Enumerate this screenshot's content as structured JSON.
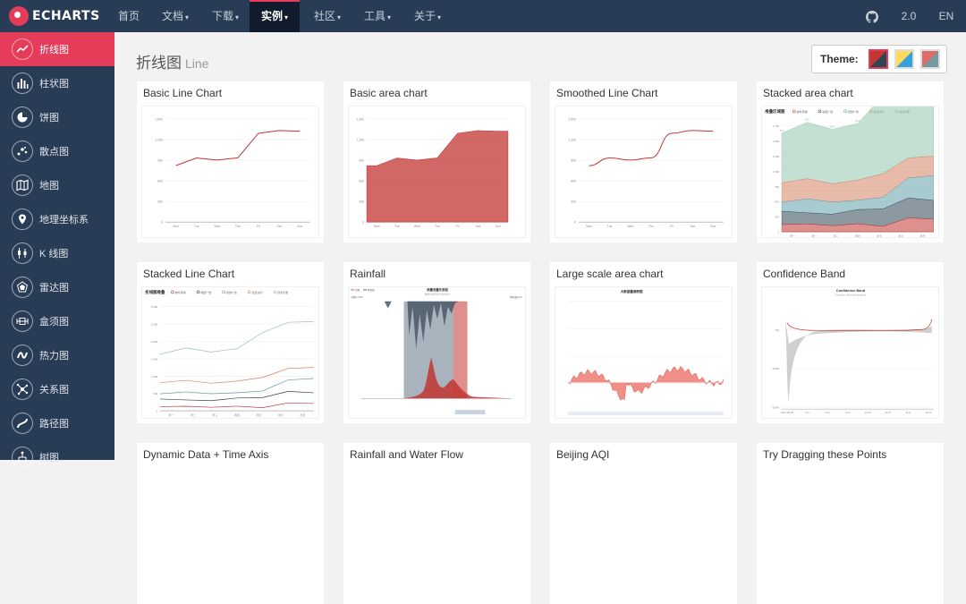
{
  "app": {
    "logo_text": "ECHARTS"
  },
  "nav": {
    "items": [
      {
        "label": "首页"
      },
      {
        "label": "文档"
      },
      {
        "label": "下载"
      },
      {
        "label": "实例"
      },
      {
        "label": "社区"
      },
      {
        "label": "工具"
      },
      {
        "label": "关于"
      }
    ],
    "version": "2.0",
    "lang": "EN",
    "github_icon": "github-icon"
  },
  "sidebar": {
    "items": [
      {
        "label": "折线图",
        "icon": "line-chart-icon"
      },
      {
        "label": "柱状图",
        "icon": "bar-chart-icon"
      },
      {
        "label": "饼图",
        "icon": "pie-chart-icon"
      },
      {
        "label": "散点图",
        "icon": "scatter-chart-icon"
      },
      {
        "label": "地图",
        "icon": "map-icon"
      },
      {
        "label": "地理坐标系",
        "icon": "geo-icon"
      },
      {
        "label": "K 线图",
        "icon": "candlestick-icon"
      },
      {
        "label": "雷达图",
        "icon": "radar-icon"
      },
      {
        "label": "盒须图",
        "icon": "boxplot-icon"
      },
      {
        "label": "热力图",
        "icon": "heatmap-icon"
      },
      {
        "label": "关系图",
        "icon": "graph-icon"
      },
      {
        "label": "路径图",
        "icon": "lines-icon"
      },
      {
        "label": "树图",
        "icon": "tree-icon"
      }
    ]
  },
  "page": {
    "title": "折线图",
    "subtitle": "Line"
  },
  "theme": {
    "label": "Theme:",
    "options": [
      {
        "name": "default",
        "colors": [
          "#c23531",
          "#2f4554"
        ]
      },
      {
        "name": "light",
        "colors": [
          "#37a2da",
          "#ffd85c"
        ]
      },
      {
        "name": "dark",
        "colors": [
          "#dd6b66",
          "#759aa0"
        ]
      }
    ]
  },
  "cards": [
    {
      "title": "Basic Line Chart"
    },
    {
      "title": "Basic area chart"
    },
    {
      "title": "Smoothed Line Chart"
    },
    {
      "title": "Stacked area chart"
    },
    {
      "title": "Stacked Line Chart"
    },
    {
      "title": "Rainfall"
    },
    {
      "title": "Large scale area chart"
    },
    {
      "title": "Confidence Band"
    },
    {
      "title": "Dynamic Data + Time Axis"
    },
    {
      "title": "Rainfall and Water Flow"
    },
    {
      "title": "Beijing AQI"
    },
    {
      "title": "Try Dragging these Points"
    }
  ],
  "thumbs": {
    "basic_line": {
      "values": [
        820,
        932,
        901,
        934,
        1290,
        1330,
        1320
      ],
      "y_ticks": [
        "1,500",
        "1,200",
        "900",
        "600",
        "300",
        "0"
      ],
      "x_ticks": [
        "Mon",
        "Tue",
        "Wed",
        "Thu",
        "Fri",
        "Sat",
        "Sun"
      ]
    },
    "basic_area": {
      "values": [
        820,
        932,
        901,
        934,
        1290,
        1330,
        1320
      ],
      "y_ticks": [
        "1,500",
        "1,200",
        "900",
        "600",
        "300",
        "0"
      ],
      "x_ticks": [
        "Mon",
        "Tue",
        "Wed",
        "Thu",
        "Fri",
        "Sat",
        "Sun"
      ]
    },
    "smoothed": {
      "values": [
        820,
        932,
        901,
        934,
        1290,
        1330,
        1320
      ],
      "y_ticks": [
        "1,500",
        "1,200",
        "900",
        "600",
        "300",
        "0"
      ],
      "x_ticks": [
        "Mon",
        "Tue",
        "Wed",
        "Thu",
        "Fri",
        "Sat",
        "Sun"
      ]
    },
    "stacked_area": {
      "title": "堆叠区域图",
      "legend": [
        "邮件营销",
        "联盟广告",
        "视频广告",
        "直接访问",
        "搜索引擎"
      ],
      "x_ticks": [
        "周一",
        "周二",
        "周三",
        "周四",
        "周五",
        "周六",
        "周日"
      ],
      "y_ticks": [
        "1,750",
        "1,500",
        "1,250",
        "1,000",
        "750",
        "500",
        "250",
        "0"
      ],
      "series": [
        [
          120,
          132,
          101,
          134,
          90,
          230,
          210
        ],
        [
          220,
          182,
          191,
          234,
          290,
          330,
          310
        ],
        [
          150,
          232,
          201,
          154,
          190,
          330,
          410
        ],
        [
          320,
          332,
          301,
          334,
          390,
          330,
          320
        ],
        [
          820,
          932,
          901,
          934,
          1290,
          1330,
          1320
        ]
      ],
      "top_labels": [
        "820",
        "932",
        "901",
        "934",
        "1290",
        "1330",
        "1320"
      ]
    },
    "stacked_line": {
      "title": "折线图堆叠",
      "legend": [
        "邮件营销",
        "联盟广告",
        "视频广告",
        "直接访问",
        "搜索引擎"
      ],
      "x_ticks": [
        "周一",
        "周二",
        "周三",
        "周四",
        "周五",
        "周六",
        "周日"
      ],
      "y_ticks": [
        "3,000",
        "2,500",
        "2,000",
        "1,500",
        "1,000",
        "500",
        "0"
      ]
    },
    "rainfall": {
      "title": "雨量流量关系图",
      "subtitle": "数据来自西安兰州水文站",
      "legend": [
        "流量",
        "降雨量"
      ],
      "left_label": "流量(m^3/s)",
      "right_label": "降雨量(mm)"
    },
    "large_area": {
      "title": "大数据量面积图"
    },
    "confidence": {
      "title": "Confidence Band",
      "subtitle": "Example in MetricsGraphics.js",
      "y_ticks": [
        "0%",
        "-100%",
        "-200%"
      ],
      "x_ticks": [
        "2012-08-28",
        "9-9",
        "9-21",
        "10-3",
        "10-15",
        "10-27",
        "11-8",
        "11-21"
      ]
    }
  }
}
